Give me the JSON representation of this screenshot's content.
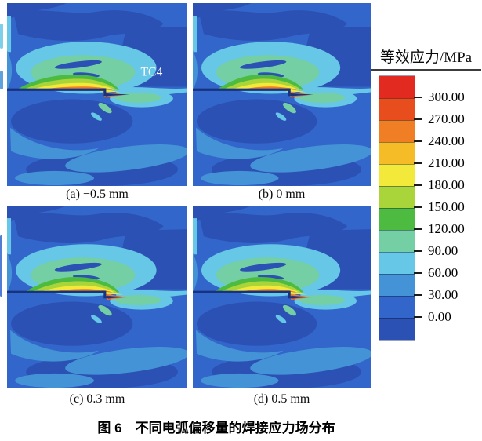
{
  "figure": {
    "caption": "图 6　不同电弧偏移量的焊接应力场分布"
  },
  "panels": [
    {
      "id": "a",
      "label": "(a) −0.5 mm",
      "arc_offset_mm": -0.5,
      "annotation": "TC4"
    },
    {
      "id": "b",
      "label": "(b) 0 mm",
      "arc_offset_mm": 0
    },
    {
      "id": "c",
      "label": "(c) 0.3 mm",
      "arc_offset_mm": 0.3
    },
    {
      "id": "d",
      "label": "(d) 0.5 mm",
      "arc_offset_mm": 0.5
    }
  ],
  "legend": {
    "title": "等效应力/MPa",
    "tick_labels": [
      "300.00",
      "270.00",
      "240.00",
      "210.00",
      "180.00",
      "150.00",
      "120.00",
      "90.00",
      "60.00",
      "30.00",
      "0.00"
    ],
    "colors": [
      "#e22a20",
      "#e84e1d",
      "#ef7e24",
      "#f6bc28",
      "#f2e93a",
      "#a9d43a",
      "#4cbb3f",
      "#74cfa4",
      "#66c7e6",
      "#4493d6",
      "#3366cb",
      "#2c51b4"
    ]
  },
  "plot_colors": {
    "weld_line": "#17327e",
    "annotation_text": "#ffffff"
  },
  "chart_data": {
    "type": "heatmap",
    "title": "图 6　不同电弧偏移量的焊接应力场分布",
    "description": "四幅焊接等效应力场等值线云图（电弧偏移量不同），右侧为应力色标",
    "subplots": [
      {
        "label": "(a) −0.5 mm",
        "arc_offset_mm": -0.5,
        "annotation": "TC4"
      },
      {
        "label": "(b) 0 mm",
        "arc_offset_mm": 0
      },
      {
        "label": "(c) 0.3 mm",
        "arc_offset_mm": 0.3
      },
      {
        "label": "(d) 0.5 mm",
        "arc_offset_mm": 0.5
      }
    ],
    "colorbar": {
      "label": "等效应力/MPa",
      "units": "MPa",
      "levels": [
        0,
        30,
        60,
        90,
        120,
        150,
        180,
        210,
        240,
        270,
        300
      ],
      "colors_top_to_bottom": [
        "#e22a20",
        "#e84e1d",
        "#ef7e24",
        "#f6bc28",
        "#f2e93a",
        "#a9d43a",
        "#4cbb3f",
        "#74cfa4",
        "#66c7e6",
        "#4493d6",
        "#3366cb",
        "#2c51b4"
      ],
      "orientation": "vertical",
      "position": "right"
    }
  }
}
